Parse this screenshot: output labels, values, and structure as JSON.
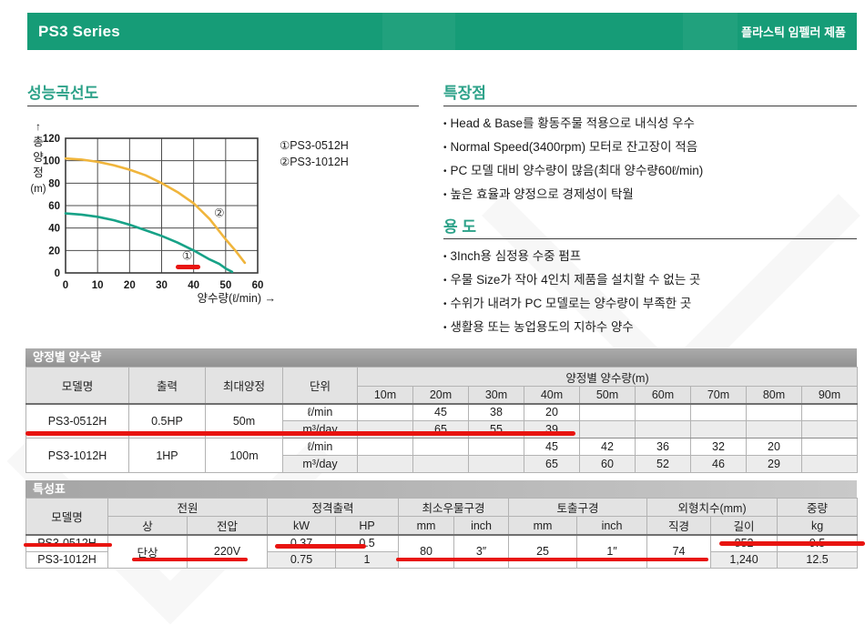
{
  "header": {
    "title": "PS3 Series",
    "tagline": "플라스틱 임펠러 제품",
    "bg_color": "#169c77"
  },
  "performance": {
    "section_title": "성능곡선도"
  },
  "features": {
    "section_title": "특장점",
    "items": [
      "Head & Base를 황동주물 적용으로 내식성 우수",
      "Normal Speed(3400rpm) 모터로 잔고장이 적음",
      "PC 모델 대비 양수량이 많음(최대 양수량60ℓ/min)",
      "높은 효율과 양정으로 경제성이 탁월"
    ]
  },
  "usage": {
    "section_title": "용 도",
    "items": [
      "3Inch용 심정용 수중 펌프",
      "우물 Size가 작아 4인치 제품을 설치할 수 없는 곳",
      "수위가 내려가 PC 모델로는 양수량이 부족한 곳",
      "생활용 또는 농업용도의 지하수 양수"
    ]
  },
  "chart_data": {
    "type": "line",
    "title": "성능곡선도",
    "xlabel": "양수량(ℓ/min) →",
    "ylabel": "총양정(m)",
    "ylabel_arrow": "↑",
    "ylabel_chars": [
      "총",
      "양",
      "정"
    ],
    "ylabel_unit": "(m)",
    "xlim": [
      0,
      60
    ],
    "ylim": [
      0,
      120
    ],
    "xticks": [
      0,
      10,
      20,
      30,
      40,
      50,
      60
    ],
    "yticks": [
      0,
      20,
      40,
      60,
      80,
      100,
      120
    ],
    "grid": true,
    "legend_position": "top-right-outside",
    "series": [
      {
        "name": "PS3-0512H",
        "marker": "①",
        "color": "#17a287",
        "points": [
          [
            0,
            53
          ],
          [
            5,
            52
          ],
          [
            10,
            50
          ],
          [
            15,
            47
          ],
          [
            20,
            43
          ],
          [
            25,
            38
          ],
          [
            30,
            33
          ],
          [
            35,
            27
          ],
          [
            40,
            20
          ],
          [
            45,
            12
          ],
          [
            48,
            8
          ],
          [
            50,
            4
          ],
          [
            52,
            1
          ]
        ],
        "label_pos": [
          38,
          15
        ]
      },
      {
        "name": "PS3-1012H",
        "marker": "②",
        "color": "#f0b53c",
        "points": [
          [
            0,
            102
          ],
          [
            5,
            101
          ],
          [
            10,
            99
          ],
          [
            15,
            96
          ],
          [
            20,
            92
          ],
          [
            25,
            87
          ],
          [
            30,
            80
          ],
          [
            35,
            72
          ],
          [
            40,
            62
          ],
          [
            45,
            48
          ],
          [
            50,
            30
          ],
          [
            53,
            20
          ],
          [
            56,
            9
          ]
        ],
        "label_pos": [
          48,
          53
        ]
      }
    ]
  },
  "table1": {
    "title": "양정별 양수량",
    "col_headers": {
      "model": "모델명",
      "power": "출력",
      "max_head": "최대양정",
      "unit": "단위",
      "group": "양정별 양수량(m)"
    },
    "head_cols": [
      "10m",
      "20m",
      "30m",
      "40m",
      "50m",
      "60m",
      "70m",
      "80m",
      "90m"
    ],
    "unit_lmin": "ℓ/min",
    "unit_m3day": "m³/day",
    "rows": [
      {
        "model": "PS3-0512H",
        "power": "0.5HP",
        "max_head": "50m",
        "lmin": [
          "",
          "45",
          "38",
          "20",
          "",
          "",
          "",
          "",
          ""
        ],
        "m3day": [
          "",
          "65",
          "55",
          "39",
          "",
          "",
          "",
          "",
          ""
        ]
      },
      {
        "model": "PS3-1012H",
        "power": "1HP",
        "max_head": "100m",
        "lmin": [
          "",
          "",
          "",
          "45",
          "42",
          "36",
          "32",
          "20",
          ""
        ],
        "m3day": [
          "",
          "",
          "",
          "65",
          "60",
          "52",
          "46",
          "29",
          ""
        ]
      }
    ]
  },
  "table2": {
    "title": "특성표",
    "headers": {
      "model": "모델명",
      "power_group": "전원",
      "phase": "상",
      "voltage": "전압",
      "output_group": "정격출력",
      "kw": "kW",
      "hp": "HP",
      "well_group": "최소우물구경",
      "well_mm": "mm",
      "well_inch": "inch",
      "outlet_group": "토출구경",
      "outlet_mm": "mm",
      "outlet_inch": "inch",
      "dim_group": "외형치수(mm)",
      "diameter": "직경",
      "length": "길이",
      "weight_group": "중량",
      "weight_kg": "kg"
    },
    "rows": [
      {
        "model": "PS3-0512H",
        "phase": "단상",
        "voltage": "220V",
        "kw": "0.37",
        "hp": "0.5",
        "well_mm": "80",
        "well_inch": "3″",
        "outlet_mm": "25",
        "outlet_inch": "1″",
        "diameter": "74",
        "length": "852",
        "weight": "9.5"
      },
      {
        "model": "PS3-1012H",
        "kw": "0.75",
        "hp": "1",
        "length": "1,240",
        "weight": "12.5"
      }
    ]
  },
  "annotations": {
    "color": "#e81410"
  }
}
